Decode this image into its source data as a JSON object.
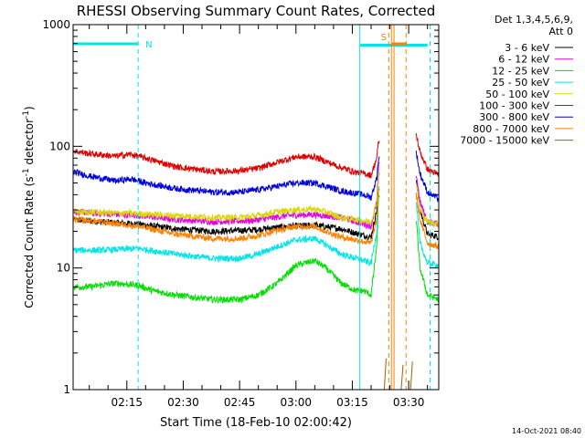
{
  "chart_data": {
    "type": "line",
    "title": "RHESSI Observing Summary Count Rates, Corrected",
    "xlabel": "Start Time (18-Feb-10 02:00:42)",
    "ylabel_main": "Corrected Count Rate (s",
    "ylabel_exp1": "-1",
    "ylabel_mid": " detector",
    "ylabel_exp2": "-1",
    "ylabel_end": ")",
    "x_minutes_range": [
      0.7,
      98
    ],
    "ylim": [
      1,
      1000
    ],
    "yscale": "log",
    "x_ticks": [
      {
        "label": "02:15",
        "minutes": 15
      },
      {
        "label": "02:30",
        "minutes": 30
      },
      {
        "label": "02:45",
        "minutes": 45
      },
      {
        "label": "03:00",
        "minutes": 60
      },
      {
        "label": "03:15",
        "minutes": 75
      },
      {
        "label": "03:30",
        "minutes": 90
      }
    ],
    "y_ticks": [
      {
        "label": "1",
        "value": 1
      },
      {
        "label": "10",
        "value": 10
      },
      {
        "label": "100",
        "value": 100
      },
      {
        "label": "1000",
        "value": 1000
      }
    ],
    "legend": {
      "header1": "Det 1,3,4,5,6,9,",
      "header2": "Att 0",
      "position": "right",
      "entries": [
        {
          "label": "3 - 6 keV",
          "color": "#000000"
        },
        {
          "label": "6 - 12 keV",
          "color": "#e600e6"
        },
        {
          "label": "12 - 25 keV",
          "color": "#00e000"
        },
        {
          "label": "25 - 50 keV",
          "color": "#00e5e5"
        },
        {
          "label": "50 - 100 keV",
          "color": "#d8d800"
        },
        {
          "label": "100 - 300 keV",
          "color": "#e00000"
        },
        {
          "label": "300 - 800 keV",
          "color": "#0000e0"
        },
        {
          "label": "800 - 7000 keV",
          "color": "#ff8000"
        },
        {
          "label": "7000 - 15000 keV",
          "color": "#a06000"
        }
      ]
    },
    "flags": [
      {
        "label": "N",
        "start": 0.7,
        "end": 18,
        "color": "#00e5e5"
      },
      {
        "label": "S",
        "start": 85.5,
        "end": 89.5,
        "color": "#ff8000"
      }
    ],
    "bars": [
      {
        "start": 77,
        "end": 95,
        "color": "#00e5e5"
      }
    ],
    "vlines": [
      {
        "x": 18.0,
        "color": "#00e5e5",
        "style": "dashed"
      },
      {
        "x": 77.0,
        "color": "#00e5e5",
        "style": "solid"
      },
      {
        "x": 95.7,
        "color": "#00e5e5",
        "style": "dashed"
      },
      {
        "x": 85.4,
        "color": "#ff8000",
        "style": "solid"
      },
      {
        "x": 86.1,
        "color": "#ff8000",
        "style": "solid"
      },
      {
        "x": 84.7,
        "color": "#ff8000",
        "style": "dashed"
      },
      {
        "x": 89.3,
        "color": "#ff8000",
        "style": "dashed"
      }
    ],
    "gap": [
      82.2,
      92.0
    ],
    "series": [
      {
        "name": "3 - 6 keV",
        "color": "#000000",
        "x": [
          0.7,
          8,
          18,
          28,
          38,
          48,
          58,
          65,
          72,
          78,
          80,
          81.5,
          82,
          92,
          93,
          95,
          98
        ],
        "y": [
          25,
          24,
          23,
          21,
          20,
          20.5,
          22,
          22.5,
          21,
          18.5,
          18,
          30,
          60,
          55,
          30,
          19,
          18
        ]
      },
      {
        "name": "6 - 12 keV",
        "color": "#e600e6",
        "x": [
          0.7,
          8,
          18,
          28,
          38,
          48,
          58,
          65,
          72,
          78,
          80,
          81.5,
          82,
          92,
          93,
          95,
          98
        ],
        "y": [
          29,
          28,
          27,
          25,
          24,
          24.5,
          27,
          27.5,
          26,
          23,
          22,
          35,
          70,
          60,
          35,
          24,
          23
        ]
      },
      {
        "name": "12 - 25 keV",
        "color": "#00e000",
        "x": [
          0.7,
          5,
          12,
          18,
          22,
          28,
          38,
          45,
          50,
          55,
          60,
          65,
          68,
          72,
          76,
          78,
          80,
          81.5,
          82,
          92,
          93,
          95,
          98
        ],
        "y": [
          7,
          7,
          7.5,
          7.2,
          6.5,
          6,
          5.5,
          5.5,
          6,
          7.5,
          10.5,
          11.5,
          10,
          7.5,
          6.5,
          6.5,
          6,
          15,
          40,
          25,
          10,
          6,
          5.5
        ]
      },
      {
        "name": "25 - 50 keV",
        "color": "#00e5e5",
        "x": [
          0.7,
          8,
          18,
          28,
          38,
          45,
          50,
          55,
          60,
          65,
          68,
          72,
          76,
          78,
          80,
          81.5,
          82,
          92,
          93,
          95,
          98
        ],
        "y": [
          14,
          14,
          14.5,
          13,
          12,
          12,
          13,
          15,
          17,
          17.5,
          15.5,
          13,
          12,
          11.5,
          11,
          20,
          45,
          35,
          16,
          11,
          10.5
        ]
      },
      {
        "name": "50 - 100 keV",
        "color": "#d8d800",
        "x": [
          0.7,
          8,
          18,
          28,
          38,
          45,
          50,
          55,
          60,
          65,
          68,
          72,
          76,
          78,
          80,
          81.5,
          82,
          92,
          93,
          95,
          98
        ],
        "y": [
          29,
          28.5,
          28,
          27,
          26,
          26,
          27,
          29,
          30,
          30.5,
          29,
          26,
          25,
          24.5,
          24,
          35,
          60,
          50,
          30,
          24,
          23
        ]
      },
      {
        "name": "100 - 300 keV",
        "color": "#e00000",
        "x": [
          0.7,
          5,
          12,
          16,
          20,
          28,
          38,
          45,
          50,
          55,
          60,
          65,
          68,
          72,
          76,
          78,
          80,
          81.5,
          82,
          91.5,
          92,
          93,
          95,
          98
        ],
        "y": [
          92,
          87,
          83,
          86,
          80,
          68,
          62,
          63,
          66,
          74,
          82,
          82,
          75,
          67,
          61,
          60,
          58,
          80,
          110,
          105,
          125,
          90,
          65,
          58
        ]
      },
      {
        "name": "300 - 800 keV",
        "color": "#0000e0",
        "x": [
          0.7,
          5,
          12,
          16,
          20,
          28,
          38,
          45,
          50,
          55,
          60,
          65,
          68,
          72,
          76,
          78,
          80,
          81.5,
          82,
          91.5,
          92,
          93,
          95,
          98
        ],
        "y": [
          62,
          57,
          52,
          54,
          50,
          45,
          42,
          42,
          44,
          47,
          50,
          50,
          47,
          43,
          41,
          40,
          38,
          55,
          80,
          75,
          90,
          60,
          42,
          37
        ]
      },
      {
        "name": "800 - 7000 keV",
        "color": "#ff8000",
        "x": [
          0.7,
          8,
          18,
          28,
          38,
          45,
          50,
          55,
          60,
          65,
          68,
          72,
          76,
          78,
          80,
          81.5,
          82,
          92,
          93,
          95,
          98
        ],
        "y": [
          25,
          24,
          22,
          19,
          17.5,
          17.5,
          18.5,
          20.5,
          22,
          22,
          20,
          18,
          17,
          16.5,
          16,
          25,
          45,
          40,
          25,
          16,
          15
        ]
      },
      {
        "name": "7000 - 15000 keV",
        "color": "#a06000",
        "x": [
          83.5,
          84,
          88,
          88.5,
          90.5,
          91
        ],
        "y": [
          1,
          1.8,
          1,
          1.6,
          1,
          1.7
        ]
      }
    ]
  },
  "footer": {
    "date_stamp": "14-Oct-2021 08:40"
  }
}
